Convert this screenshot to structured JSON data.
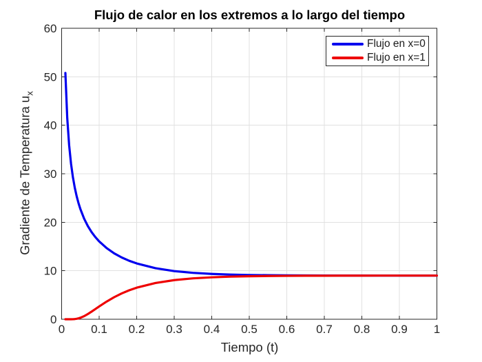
{
  "chart_data": {
    "type": "line",
    "title": "Flujo de calor en los extremos a lo largo del tiempo",
    "xlabel": "Tiempo (t)",
    "ylabel": "Gradiente de Temperatura u_x",
    "ylabel_main": "Gradiente de Temperatura u",
    "ylabel_sub": "x",
    "xlim": [
      0,
      1
    ],
    "ylim": [
      0,
      60
    ],
    "xticks": [
      0,
      0.1,
      0.2,
      0.3,
      0.4,
      0.5,
      0.6,
      0.7,
      0.8,
      0.9,
      1
    ],
    "xtick_labels": [
      "0",
      "0.1",
      "0.2",
      "0.3",
      "0.4",
      "0.5",
      "0.6",
      "0.7",
      "0.8",
      "0.9",
      "1"
    ],
    "yticks": [
      0,
      10,
      20,
      30,
      40,
      50,
      60
    ],
    "ytick_labels": [
      "0",
      "10",
      "20",
      "30",
      "40",
      "50",
      "60"
    ],
    "grid": true,
    "grid_color": "#e0e0e0",
    "axis_color": "#262626",
    "legend_position": "northeast",
    "steady_state_value": 9,
    "x": [
      0.01,
      0.015,
      0.02,
      0.025,
      0.03,
      0.035,
      0.04,
      0.045,
      0.05,
      0.06,
      0.07,
      0.08,
      0.09,
      0.1,
      0.12,
      0.14,
      0.16,
      0.18,
      0.2,
      0.25,
      0.3,
      0.35,
      0.4,
      0.45,
      0.5,
      0.55,
      0.6,
      0.65,
      0.7,
      0.75,
      0.8,
      0.85,
      0.9,
      0.95,
      1.0
    ],
    "series": [
      {
        "name": "Flujo en x=0",
        "color": "#0000ee",
        "line_width": 3.2,
        "values": [
          50.78,
          41.46,
          35.9,
          32.11,
          29.32,
          27.14,
          25.39,
          23.94,
          22.71,
          20.73,
          19.19,
          17.95,
          16.93,
          16.06,
          14.67,
          13.59,
          12.74,
          12.06,
          11.51,
          10.53,
          9.93,
          9.57,
          9.35,
          9.21,
          9.13,
          9.08,
          9.05,
          9.03,
          9.02,
          9.01,
          9.01,
          9.0,
          9.0,
          9.0,
          9.0
        ]
      },
      {
        "name": "Flujo en x=1",
        "color": "#ee0000",
        "line_width": 3.2,
        "values": [
          0.0,
          0.0,
          0.0,
          0.0,
          0.01,
          0.04,
          0.1,
          0.19,
          0.31,
          0.64,
          1.08,
          1.58,
          2.1,
          2.64,
          3.65,
          4.55,
          5.32,
          5.97,
          6.51,
          7.47,
          8.07,
          8.43,
          8.65,
          8.79,
          8.87,
          8.92,
          8.95,
          8.97,
          8.98,
          8.99,
          8.99,
          9.0,
          9.0,
          9.0,
          9.0
        ]
      }
    ]
  }
}
